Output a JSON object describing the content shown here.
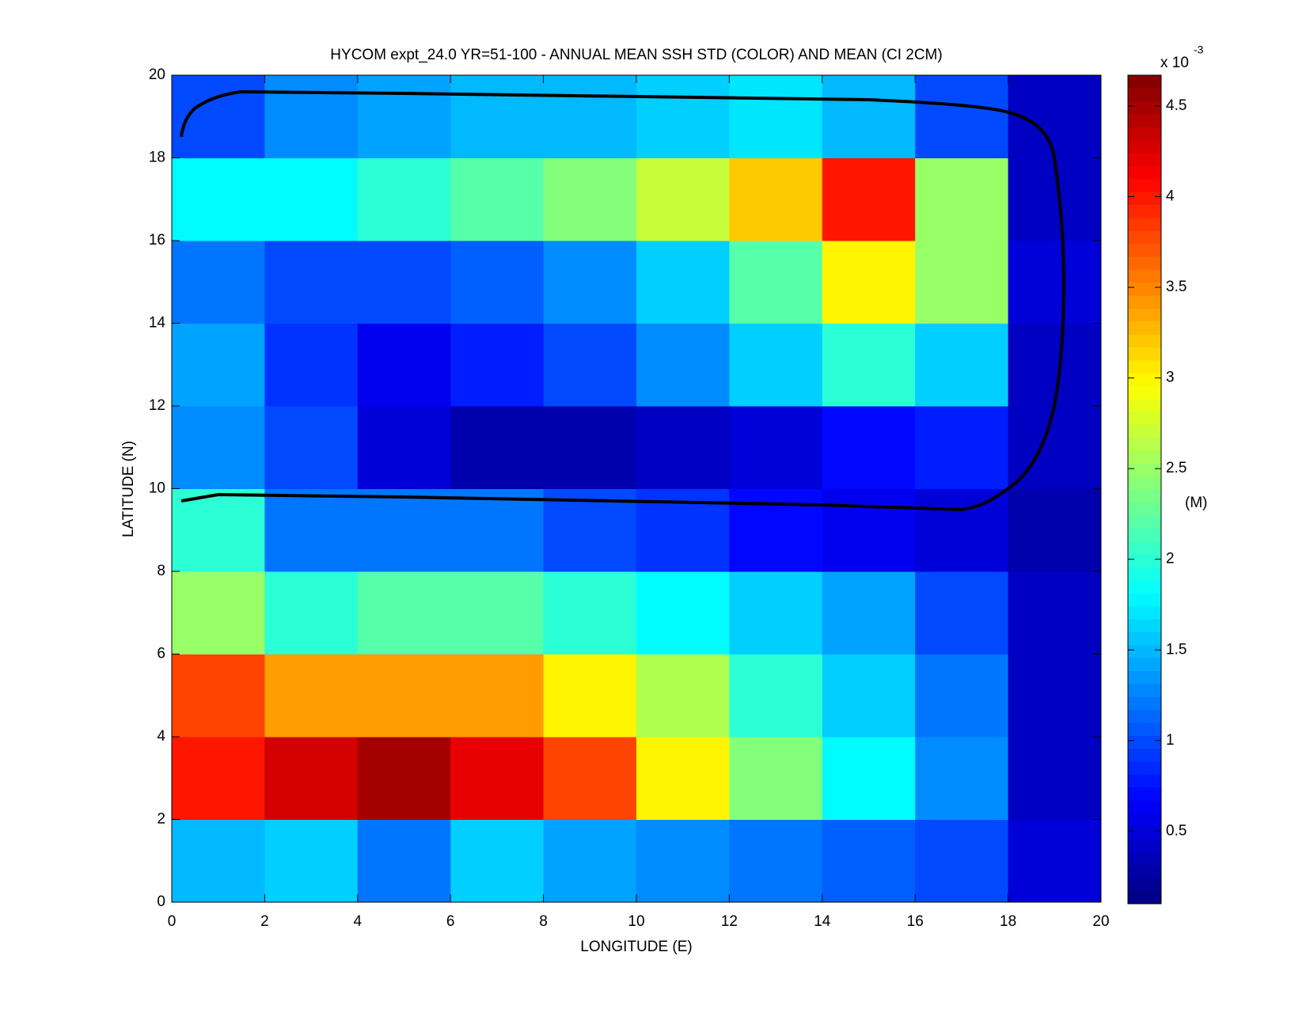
{
  "chart_data": {
    "type": "heatmap",
    "title": "HYCOM expt_24.0 YR=51-100 - ANNUAL MEAN SSH STD (COLOR) AND MEAN (CI 2CM)",
    "x_label": "LONGITUDE (E)",
    "y_label": "LATITUDE (N)",
    "x_bins": [
      0,
      2,
      4,
      6,
      8,
      10,
      12,
      14,
      16,
      18,
      20
    ],
    "y_bins": [
      0,
      2,
      4,
      6,
      8,
      10,
      12,
      14,
      16,
      18,
      20
    ],
    "z": [
      [
        1.5,
        1.6,
        1.2,
        1.6,
        1.4,
        1.3,
        1.2,
        1.1,
        1.0,
        0.5
      ],
      [
        4.0,
        4.3,
        4.5,
        4.2,
        3.8,
        3.0,
        2.4,
        1.8,
        1.3,
        0.4
      ],
      [
        3.8,
        3.4,
        3.4,
        3.4,
        3.0,
        2.6,
        2.0,
        1.6,
        1.2,
        0.4
      ],
      [
        2.5,
        2.0,
        2.2,
        2.2,
        2.0,
        1.8,
        1.6,
        1.4,
        1.0,
        0.4
      ],
      [
        2.0,
        1.2,
        1.2,
        1.2,
        1.0,
        0.9,
        0.7,
        0.6,
        0.5,
        0.3
      ],
      [
        1.3,
        1.0,
        0.5,
        0.3,
        0.3,
        0.4,
        0.5,
        0.7,
        0.8,
        0.4
      ],
      [
        1.4,
        0.9,
        0.6,
        0.8,
        1.0,
        1.3,
        1.6,
        2.0,
        1.6,
        0.4
      ],
      [
        1.2,
        1.0,
        1.0,
        1.1,
        1.3,
        1.6,
        2.2,
        3.0,
        2.5,
        0.5
      ],
      [
        1.8,
        1.8,
        2.0,
        2.2,
        2.4,
        2.7,
        3.2,
        4.0,
        2.5,
        0.4
      ],
      [
        1.0,
        1.3,
        1.4,
        1.5,
        1.5,
        1.6,
        1.7,
        1.5,
        1.0,
        0.4
      ]
    ],
    "xlim": [
      0,
      20
    ],
    "ylim": [
      0,
      20
    ],
    "xticks": [
      0,
      2,
      4,
      6,
      8,
      10,
      12,
      14,
      16,
      18,
      20
    ],
    "yticks": [
      0,
      2,
      4,
      6,
      8,
      10,
      12,
      14,
      16,
      18,
      20
    ],
    "colormap": "jet",
    "clim": [
      0.1,
      4.67
    ],
    "cticks": [
      0.5,
      1,
      1.5,
      2,
      2.5,
      3,
      3.5,
      4,
      4.5
    ],
    "colorbar_multiplier": "x 10",
    "colorbar_exponent": "-3",
    "colorbar_label": "(M)"
  }
}
